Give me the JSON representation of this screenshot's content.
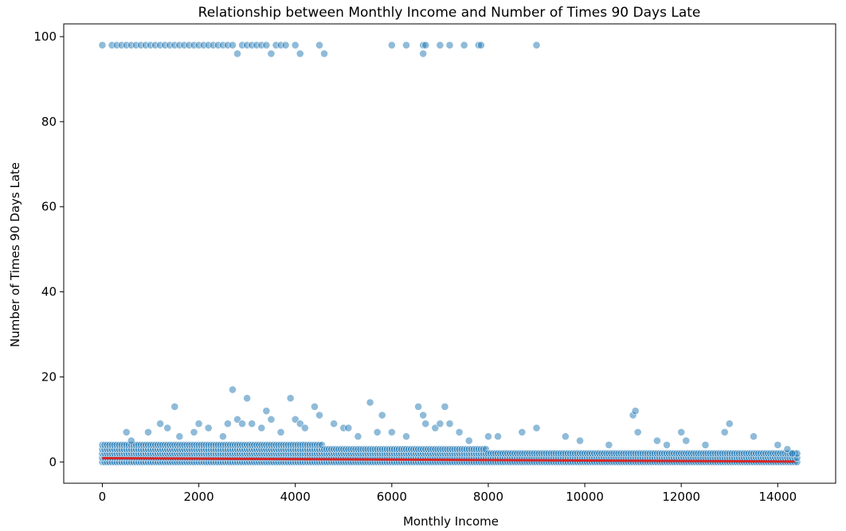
{
  "chart_data": {
    "type": "scatter",
    "title": "Relationship between Monthly Income and Number of Times 90 Days Late",
    "xlabel": "Monthly Income",
    "ylabel": "Number of Times 90 Days Late",
    "xlim": [
      -800,
      15200
    ],
    "ylim": [
      -5,
      103
    ],
    "xticks": [
      0,
      2000,
      4000,
      6000,
      8000,
      10000,
      12000,
      14000
    ],
    "yticks": [
      0,
      20,
      40,
      60,
      80,
      100
    ],
    "grid": false,
    "legend": "none",
    "colors": {
      "points": "#1f77b4",
      "trend": "#d62728"
    },
    "outlier_points": [
      [
        0,
        98
      ],
      [
        200,
        98
      ],
      [
        300,
        98
      ],
      [
        400,
        98
      ],
      [
        500,
        98
      ],
      [
        600,
        98
      ],
      [
        700,
        98
      ],
      [
        800,
        98
      ],
      [
        900,
        98
      ],
      [
        1000,
        98
      ],
      [
        1100,
        98
      ],
      [
        1200,
        98
      ],
      [
        1300,
        98
      ],
      [
        1400,
        98
      ],
      [
        1500,
        98
      ],
      [
        1600,
        98
      ],
      [
        1700,
        98
      ],
      [
        1800,
        98
      ],
      [
        1900,
        98
      ],
      [
        2000,
        98
      ],
      [
        2100,
        98
      ],
      [
        2200,
        98
      ],
      [
        2300,
        98
      ],
      [
        2400,
        98
      ],
      [
        2500,
        98
      ],
      [
        2600,
        98
      ],
      [
        2700,
        98
      ],
      [
        2800,
        96
      ],
      [
        2900,
        98
      ],
      [
        3000,
        98
      ],
      [
        3100,
        98
      ],
      [
        3200,
        98
      ],
      [
        3300,
        98
      ],
      [
        3400,
        98
      ],
      [
        3500,
        96
      ],
      [
        3600,
        98
      ],
      [
        3700,
        98
      ],
      [
        3800,
        98
      ],
      [
        4000,
        98
      ],
      [
        4100,
        96
      ],
      [
        4500,
        98
      ],
      [
        4600,
        96
      ],
      [
        6000,
        98
      ],
      [
        6300,
        98
      ],
      [
        6650,
        98
      ],
      [
        6650,
        96
      ],
      [
        6700,
        98
      ],
      [
        7000,
        98
      ],
      [
        7200,
        98
      ],
      [
        7500,
        98
      ],
      [
        7800,
        98
      ],
      [
        7850,
        98
      ],
      [
        9000,
        98
      ]
    ],
    "low_points": [
      [
        500,
        7
      ],
      [
        600,
        5
      ],
      [
        950,
        7
      ],
      [
        1200,
        9
      ],
      [
        1350,
        8
      ],
      [
        1500,
        13
      ],
      [
        1600,
        6
      ],
      [
        1900,
        7
      ],
      [
        2000,
        9
      ],
      [
        2200,
        8
      ],
      [
        2500,
        6
      ],
      [
        2600,
        9
      ],
      [
        2700,
        17
      ],
      [
        2800,
        10
      ],
      [
        2900,
        9
      ],
      [
        3000,
        15
      ],
      [
        3100,
        9
      ],
      [
        3300,
        8
      ],
      [
        3400,
        12
      ],
      [
        3500,
        10
      ],
      [
        3700,
        7
      ],
      [
        3900,
        15
      ],
      [
        4000,
        10
      ],
      [
        4100,
        9
      ],
      [
        4200,
        8
      ],
      [
        4400,
        13
      ],
      [
        4500,
        11
      ],
      [
        4800,
        9
      ],
      [
        5000,
        8
      ],
      [
        5100,
        8
      ],
      [
        5300,
        6
      ],
      [
        5550,
        14
      ],
      [
        5700,
        7
      ],
      [
        5800,
        11
      ],
      [
        6000,
        7
      ],
      [
        6300,
        6
      ],
      [
        6550,
        13
      ],
      [
        6650,
        11
      ],
      [
        6700,
        9
      ],
      [
        6900,
        8
      ],
      [
        7000,
        9
      ],
      [
        7100,
        13
      ],
      [
        7200,
        9
      ],
      [
        7400,
        7
      ],
      [
        7600,
        5
      ],
      [
        8000,
        6
      ],
      [
        8200,
        6
      ],
      [
        8700,
        7
      ],
      [
        9000,
        8
      ],
      [
        9600,
        6
      ],
      [
        9900,
        5
      ],
      [
        10500,
        4
      ],
      [
        11000,
        11
      ],
      [
        11050,
        12
      ],
      [
        11100,
        7
      ],
      [
        11500,
        5
      ],
      [
        11700,
        4
      ],
      [
        12000,
        7
      ],
      [
        12100,
        5
      ],
      [
        12500,
        4
      ],
      [
        12900,
        7
      ],
      [
        13000,
        9
      ],
      [
        13500,
        6
      ],
      [
        14000,
        4
      ],
      [
        14200,
        3
      ],
      [
        14300,
        2
      ]
    ],
    "trend_line": {
      "x": [
        0,
        14350
      ],
      "y": [
        0.9,
        0.1
      ]
    }
  }
}
